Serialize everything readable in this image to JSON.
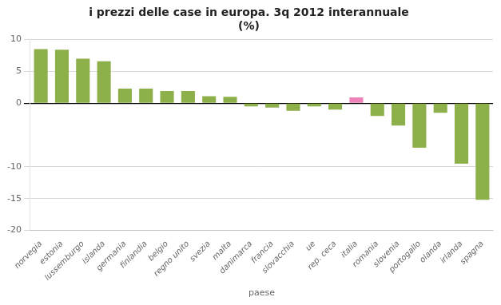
{
  "chart_data": {
    "type": "bar",
    "title": "i prezzi delle case in europa. 3q 2012 interannuale\n(%)",
    "xlabel": "paese",
    "categories": [
      "norvegia",
      "estonia",
      "lussemburgo",
      "islanda",
      "germania",
      "finlandia",
      "belgio",
      "regno unito",
      "svezia",
      "malta",
      "danimarca",
      "francia",
      "slovacchia",
      "ue",
      "rep. ceca",
      "italia",
      "romania",
      "slovenia",
      "portogallo",
      "olanda",
      "irlanda",
      "spagna"
    ],
    "values": [
      8.5,
      8.4,
      7.0,
      6.6,
      2.3,
      2.3,
      1.9,
      1.9,
      1.1,
      1.0,
      -0.5,
      -0.7,
      -1.2,
      -0.5,
      -1.0,
      0.9,
      -2.0,
      -3.5,
      -7.0,
      -1.5,
      -9.5,
      -15.2
    ],
    "colors": [
      "#8db04a",
      "#8db04a",
      "#8db04a",
      "#8db04a",
      "#8db04a",
      "#8db04a",
      "#8db04a",
      "#8db04a",
      "#8db04a",
      "#8db04a",
      "#8db04a",
      "#8db04a",
      "#8db04a",
      "#8db04a",
      "#8db04a",
      "#ee82b8",
      "#8db04a",
      "#8db04a",
      "#8db04a",
      "#8db04a",
      "#8db04a",
      "#8db04a"
    ],
    "ylim": [
      -20,
      10
    ],
    "yticks": [
      -20,
      -15,
      -10,
      0,
      5,
      10
    ],
    "grid": true
  }
}
